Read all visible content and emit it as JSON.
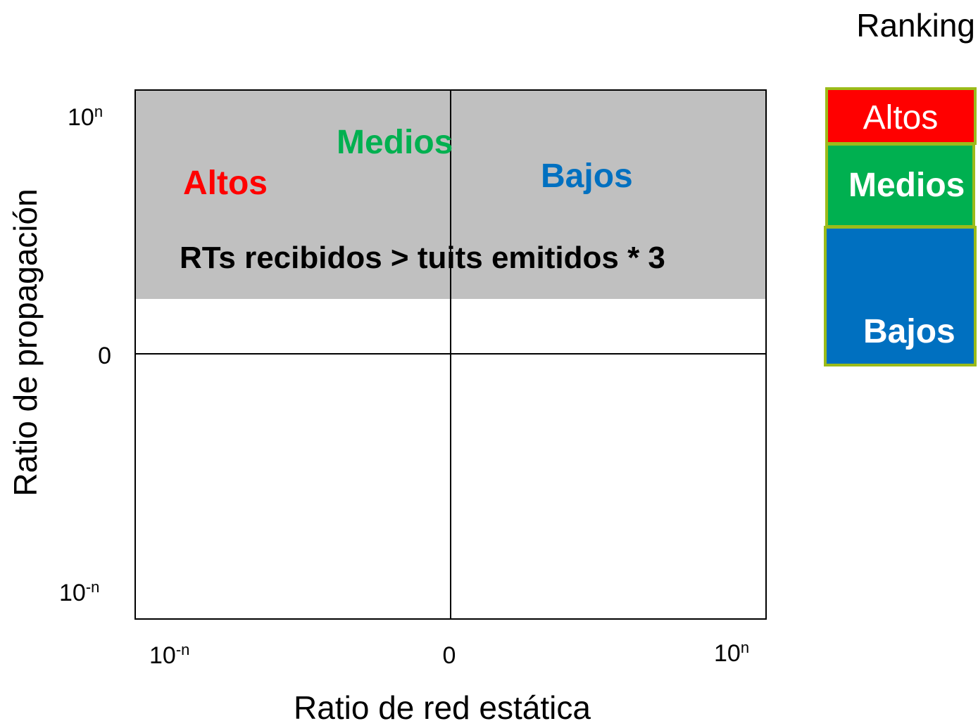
{
  "header": {
    "title": "Ranking"
  },
  "y_axis": {
    "label": "Ratio de propagación",
    "ticks": [
      {
        "base": "10",
        "exp": "n"
      },
      {
        "base": "0"
      },
      {
        "base": "10",
        "exp": "-n"
      }
    ]
  },
  "x_axis": {
    "label": "Ratio de red estática",
    "ticks": [
      {
        "base": "10",
        "exp": "-n"
      },
      {
        "base": "0"
      },
      {
        "base": "10",
        "exp": "n"
      }
    ]
  },
  "region": {
    "labels": [
      "Medios",
      "Altos",
      "Bajos"
    ],
    "condition": "RTs recibidos  > tuits emitidos * 3"
  },
  "ranking": {
    "items": [
      "Altos",
      "Medios",
      "Bajos"
    ]
  }
}
